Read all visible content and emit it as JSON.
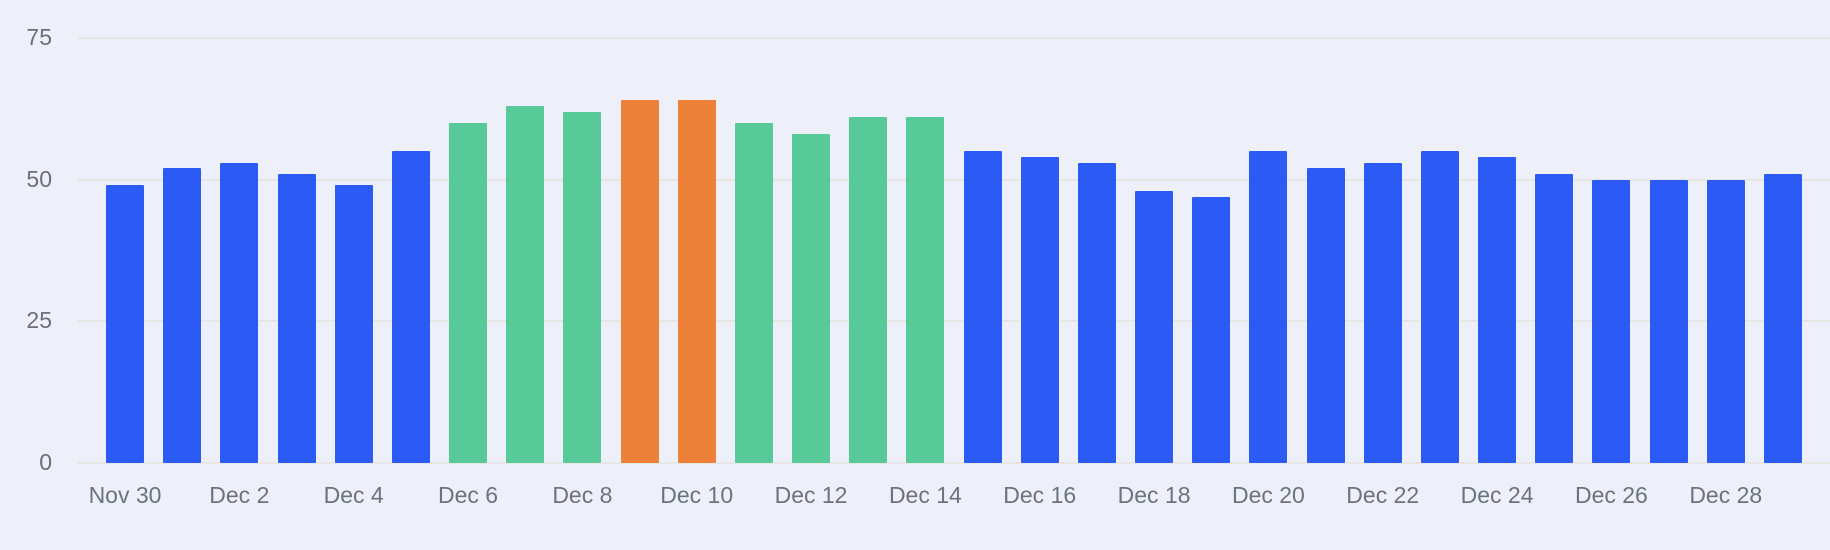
{
  "chart_data": {
    "type": "bar",
    "title": "",
    "xlabel": "",
    "ylabel": "",
    "categories": [
      "Nov 30",
      "Dec 1",
      "Dec 2",
      "Dec 3",
      "Dec 4",
      "Dec 5",
      "Dec 6",
      "Dec 7",
      "Dec 8",
      "Dec 9",
      "Dec 10",
      "Dec 11",
      "Dec 12",
      "Dec 13",
      "Dec 14",
      "Dec 15",
      "Dec 16",
      "Dec 17",
      "Dec 18",
      "Dec 19",
      "Dec 20",
      "Dec 21",
      "Dec 22",
      "Dec 23",
      "Dec 24",
      "Dec 25",
      "Dec 26",
      "Dec 27",
      "Dec 28",
      "Dec 29"
    ],
    "values": [
      49,
      52,
      53,
      51,
      49,
      55,
      60,
      63,
      62,
      64,
      64,
      60,
      58,
      61,
      61,
      55,
      54,
      53,
      48,
      47,
      55,
      52,
      53,
      55,
      54,
      51,
      50,
      50,
      50,
      51
    ],
    "bar_colors": [
      "blue",
      "blue",
      "blue",
      "blue",
      "blue",
      "blue",
      "green",
      "green",
      "green",
      "orange",
      "orange",
      "green",
      "green",
      "green",
      "green",
      "blue",
      "blue",
      "blue",
      "blue",
      "blue",
      "blue",
      "blue",
      "blue",
      "blue",
      "blue",
      "blue",
      "blue",
      "blue",
      "blue",
      "blue"
    ],
    "colors": {
      "blue": "#2B5AF5",
      "green": "#58C998",
      "orange": "#EE8139"
    },
    "ylim": [
      0,
      75
    ],
    "yticks": [
      "0",
      "25",
      "50",
      "75"
    ],
    "x_tick_labels": [
      "Nov 30",
      "Dec 2",
      "Dec 4",
      "Dec 6",
      "Dec 8",
      "Dec 10",
      "Dec 12",
      "Dec 14",
      "Dec 16",
      "Dec 18",
      "Dec 20",
      "Dec 22",
      "Dec 24",
      "Dec 26",
      "Dec 28"
    ],
    "x_tick_every": 2,
    "grid": "horizontal",
    "legend": "none",
    "background": "#EDF0F8",
    "gridline_color": "#E6E4E1",
    "tick_label_color": "#6B7280"
  }
}
